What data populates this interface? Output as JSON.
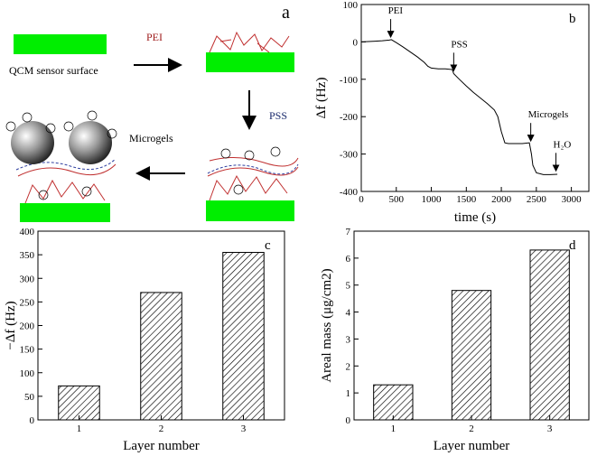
{
  "diagram": {
    "panel_label": "a",
    "surface_label": "QCM sensor surface",
    "step1": "PEI",
    "step2": "PSS",
    "step3": "Microgels"
  },
  "chart_data": [
    {
      "type": "line",
      "panel_label": "b",
      "xlabel": "time (s)",
      "ylabel": "Δf (Hz)",
      "x": [
        0,
        100,
        200,
        300,
        400,
        430,
        500,
        600,
        700,
        800,
        900,
        950,
        1000,
        1100,
        1200,
        1300,
        1320,
        1400,
        1500,
        1600,
        1700,
        1800,
        1900,
        1950,
        2000,
        2050,
        2100,
        2200,
        2300,
        2400,
        2430,
        2450,
        2500,
        2600,
        2700,
        2800
      ],
      "values": [
        0,
        1,
        2,
        3,
        5,
        6,
        -2,
        -14,
        -27,
        -40,
        -55,
        -65,
        -70,
        -72,
        -72,
        -74,
        -85,
        -100,
        -118,
        -135,
        -150,
        -165,
        -182,
        -200,
        -240,
        -270,
        -272,
        -272,
        -272,
        -270,
        -300,
        -330,
        -350,
        -355,
        -355,
        -354
      ],
      "color": "#000000",
      "xlim": [
        0,
        3250
      ],
      "xticks": [
        0,
        500,
        1000,
        1500,
        2000,
        2500,
        3000
      ],
      "ylim": [
        -400,
        100
      ],
      "yticks": [
        -400,
        -300,
        -200,
        -100,
        0,
        100
      ],
      "annotations": [
        {
          "text": "PEI",
          "x": 420,
          "y": 8
        },
        {
          "text": "PSS",
          "x": 1320,
          "y": -82
        },
        {
          "text": "Microgels",
          "x": 2420,
          "y": -270
        },
        {
          "text": "H₂O",
          "x": 2780,
          "y": -350
        }
      ]
    },
    {
      "type": "bar",
      "panel_label": "c",
      "xlabel": "Layer number",
      "ylabel": "−Δf (Hz)",
      "categories": [
        "1",
        "2",
        "3"
      ],
      "values": [
        72,
        270,
        355
      ],
      "color": "#000000",
      "ylim": [
        0,
        400
      ],
      "yticks": [
        0,
        50,
        100,
        150,
        200,
        250,
        300,
        350,
        400
      ]
    },
    {
      "type": "bar",
      "panel_label": "d",
      "xlabel": "Layer number",
      "ylabel": "Areal mass (μg/cm2)",
      "categories": [
        "1",
        "2",
        "3"
      ],
      "values": [
        1.3,
        4.8,
        6.3
      ],
      "color": "#000000",
      "ylim": [
        0,
        7
      ],
      "yticks": [
        0,
        1,
        2,
        3,
        4,
        5,
        6,
        7
      ]
    }
  ]
}
